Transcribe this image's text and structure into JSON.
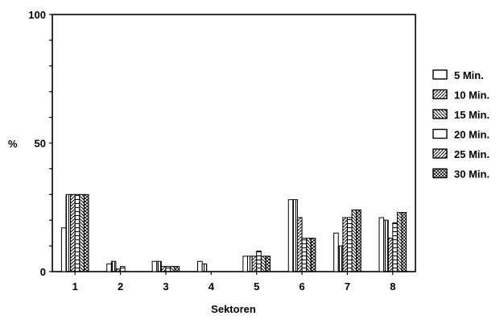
{
  "chart_data": {
    "type": "bar",
    "title": "",
    "xlabel": "Sektoren",
    "ylabel": "%",
    "ylim": [
      0,
      100
    ],
    "yticks": [
      "0",
      "50",
      "100"
    ],
    "grid": false,
    "legend_position": "right",
    "categories": [
      "1",
      "2",
      "3",
      "4",
      "5",
      "6",
      "7",
      "8"
    ],
    "series": [
      {
        "name": "5 Min.",
        "values": [
          17,
          3,
          4,
          4,
          6,
          28,
          15,
          21
        ]
      },
      {
        "name": "10 Min.",
        "values": [
          30,
          4,
          4,
          3,
          6,
          28,
          10,
          20
        ]
      },
      {
        "name": "15 Min.",
        "values": [
          30,
          1,
          2,
          0,
          6,
          21,
          21,
          13
        ]
      },
      {
        "name": "20 Min.",
        "values": [
          30,
          2,
          2,
          0,
          8,
          13,
          21,
          19
        ]
      },
      {
        "name": "25 Min.",
        "values": [
          30,
          0,
          2,
          0,
          6,
          13,
          24,
          23
        ]
      },
      {
        "name": "30 Min.",
        "values": [
          30,
          0,
          2,
          0,
          6,
          13,
          24,
          23
        ]
      }
    ]
  },
  "colors": {
    "ink": "#000000",
    "background": "#ffffff"
  }
}
